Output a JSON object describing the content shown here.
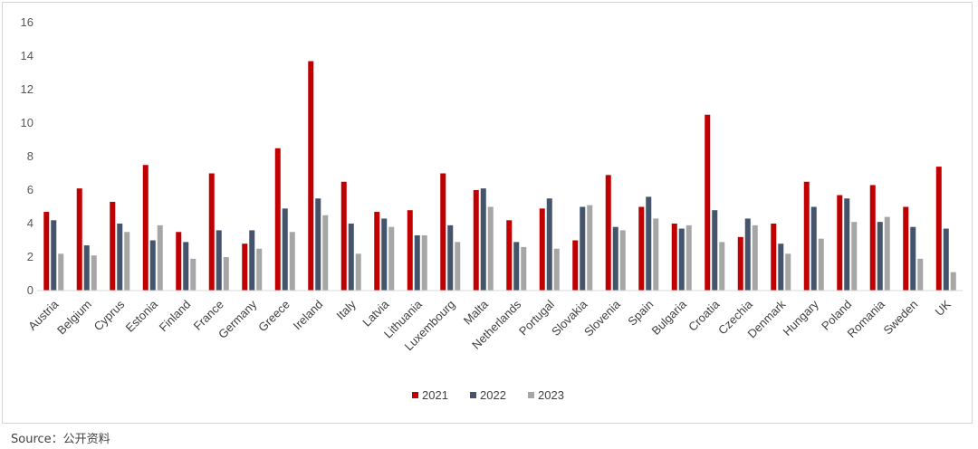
{
  "chart_data": {
    "type": "bar",
    "categories": [
      "Austria",
      "Belgium",
      "Cyprus",
      "Estonia",
      "Finland",
      "France",
      "Germany",
      "Greece",
      "Ireland",
      "Italy",
      "Latvia",
      "Lithuania",
      "Luxembourg",
      "Malta",
      "Netherlands",
      "Portugal",
      "Slovakia",
      "Slovenia",
      "Spain",
      "Bulgaria",
      "Croatia",
      "Czechia",
      "Denmark",
      "Hungary",
      "Poland",
      "Romania",
      "Sweden",
      "UK"
    ],
    "series": [
      {
        "name": "2021",
        "color": "#c00000",
        "values": [
          4.7,
          6.1,
          5.3,
          7.5,
          3.5,
          7.0,
          2.8,
          8.5,
          13.7,
          6.5,
          4.7,
          4.8,
          7.0,
          6.0,
          4.2,
          4.9,
          3.0,
          6.9,
          5.0,
          4.0,
          10.5,
          3.2,
          4.0,
          6.5,
          5.7,
          6.3,
          5.0,
          7.4
        ]
      },
      {
        "name": "2022",
        "color": "#44546a",
        "values": [
          4.2,
          2.7,
          4.0,
          3.0,
          2.9,
          3.6,
          3.6,
          4.9,
          5.5,
          4.0,
          4.3,
          3.3,
          3.9,
          6.1,
          2.9,
          5.5,
          5.0,
          3.8,
          5.6,
          3.7,
          4.8,
          4.3,
          2.8,
          5.0,
          5.5,
          4.1,
          3.8,
          3.7
        ]
      },
      {
        "name": "2023",
        "color": "#a6a6a6",
        "values": [
          2.2,
          2.1,
          3.5,
          3.9,
          1.9,
          2.0,
          2.5,
          3.5,
          4.5,
          2.2,
          3.8,
          3.3,
          2.9,
          5.0,
          2.6,
          2.5,
          5.1,
          3.6,
          4.3,
          3.9,
          2.9,
          3.9,
          2.2,
          3.1,
          4.1,
          4.4,
          1.9,
          1.1
        ]
      }
    ],
    "ylim": [
      0,
      16
    ],
    "yticks": [
      "0",
      "2",
      "4",
      "6",
      "8",
      "10",
      "12",
      "14",
      "16"
    ],
    "legend_position": "bottom",
    "grid": false
  },
  "source": "Source：公开资料"
}
